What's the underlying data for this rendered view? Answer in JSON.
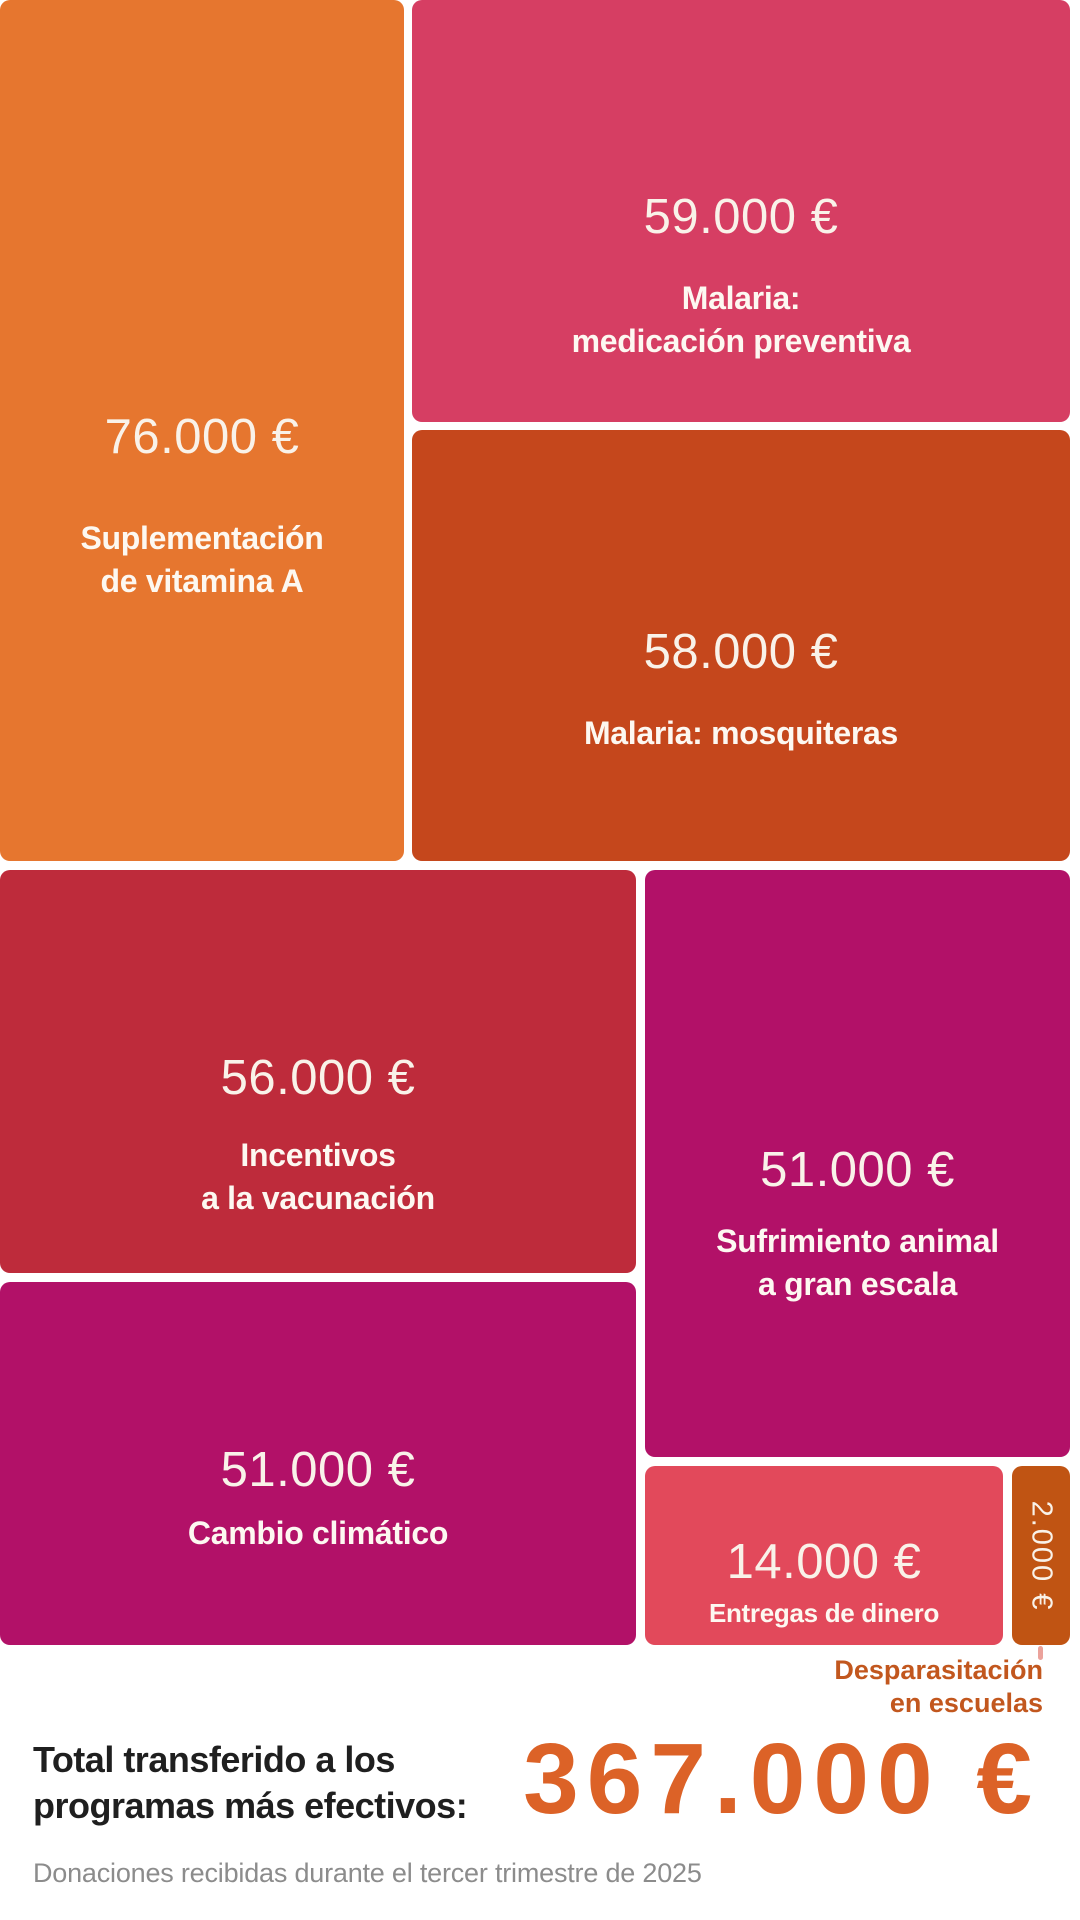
{
  "chart_data": {
    "type": "treemap",
    "title": "Total transferido a los programas más efectivos:",
    "unit": "€",
    "total_value": 367000,
    "total_display": "367.000 €",
    "footnote": "Donaciones recibidas durante el tercer trimestre de 2025",
    "legend_position": "none",
    "items": [
      {
        "name": "Suplementación de vitamina A",
        "value": 76000,
        "display": "76.000 €",
        "color": "#E6762F"
      },
      {
        "name": "Malaria: medicación preventiva",
        "value": 59000,
        "display": "59.000 €",
        "color": "#D63E63"
      },
      {
        "name": "Malaria: mosquiteras",
        "value": 58000,
        "display": "58.000 €",
        "color": "#C5471C"
      },
      {
        "name": "Incentivos a la vacunación",
        "value": 56000,
        "display": "56.000 €",
        "color": "#BE2B3B"
      },
      {
        "name": "Sufrimiento animal a gran escala",
        "value": 51000,
        "display": "51.000 €",
        "color": "#B21168"
      },
      {
        "name": "Cambio climático",
        "value": 51000,
        "display": "51.000 €",
        "color": "#B21168"
      },
      {
        "name": "Entregas de dinero",
        "value": 14000,
        "display": "14.000 €",
        "color": "#E2495B"
      },
      {
        "name": "Desparasitación en escuelas",
        "value": 2000,
        "display": "2.000 €",
        "color": "#C05413"
      }
    ]
  },
  "blocks": [
    {
      "value_display": "76.000 €",
      "label_line1": "Suplementación",
      "label_line2": "de vitamina A",
      "color": "#E6762F"
    },
    {
      "value_display": "59.000 €",
      "label_line1": "Malaria:",
      "label_line2": "medicación preventiva",
      "color": "#D63E63"
    },
    {
      "value_display": "58.000 €",
      "label_line1": "Malaria: mosquiteras",
      "label_line2": "",
      "color": "#C5471C"
    },
    {
      "value_display": "56.000 €",
      "label_line1": "Incentivos",
      "label_line2": "a la vacunación",
      "color": "#BE2B3B"
    },
    {
      "value_display": "51.000 €",
      "label_line1": "Sufrimiento animal",
      "label_line2": "a gran escala",
      "color": "#B21168"
    },
    {
      "value_display": "51.000 €",
      "label_line1": "Cambio climático",
      "label_line2": "",
      "color": "#B21168"
    },
    {
      "value_display": "14.000 €",
      "label_line1": "Entregas de dinero",
      "label_line2": "",
      "color": "#E2495B"
    },
    {
      "value_display": "2.000 €",
      "label_line1": "Desparasitación",
      "label_line2": "en escuelas",
      "color": "#C05413"
    }
  ],
  "footer": {
    "total_label_line1": "Total transferido a los",
    "total_label_line2": "programas más efectivos:",
    "total_value": "367.000 €",
    "footnote": "Donaciones recibidas durante el tercer trimestre de 2025"
  },
  "colors": {
    "canvas_bg": "#FFFFFF",
    "value_text": "#F9F2E9",
    "label_text": "#FDF8F1",
    "connector": "#EBA29B",
    "deworm_label": "#C2571E",
    "total_label_text": "#1F1F1F",
    "total_value": "#DC6227",
    "footnote_text": "#8C8C8C"
  }
}
